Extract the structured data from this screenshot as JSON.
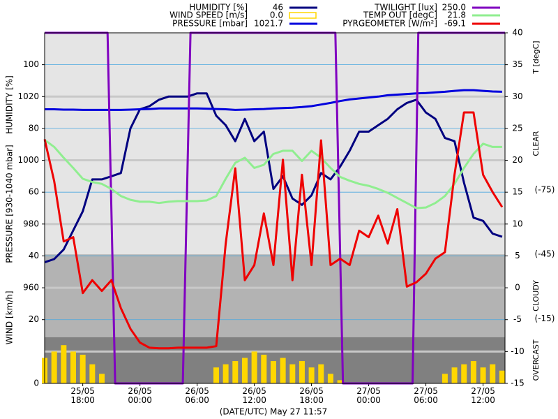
{
  "chart_data": {
    "type": "line",
    "xlabel": "(DATE/UTC) May 27 11:57",
    "x": [
      14,
      15,
      16,
      17,
      18,
      19,
      20,
      21,
      22,
      23,
      24,
      25,
      26,
      27,
      28,
      29,
      30,
      31,
      32,
      33,
      34,
      35,
      36,
      37,
      38,
      39,
      40,
      41,
      42,
      43,
      44,
      45,
      46,
      47,
      48,
      49,
      50,
      51,
      52,
      53,
      54,
      55,
      56,
      57,
      58,
      59,
      60,
      61,
      62
    ],
    "xlim": [
      14,
      62.3
    ],
    "xticks": [
      {
        "value": 18,
        "label": "25/05 18:00"
      },
      {
        "value": 24,
        "label": "26/05 00:00"
      },
      {
        "value": 30,
        "label": "26/05 06:00"
      },
      {
        "value": 36,
        "label": "26/05 12:00"
      },
      {
        "value": 42,
        "label": "26/05 18:00"
      },
      {
        "value": 48,
        "label": "27/05 00:00"
      },
      {
        "value": 54,
        "label": "27/05 06:00"
      },
      {
        "value": 60,
        "label": "27/05 12:00"
      }
    ],
    "axes": {
      "humidity": {
        "label": "HUMIDITY [%]",
        "ylim": [
          0,
          110
        ],
        "yticks": [
          60,
          80,
          100
        ],
        "gridlines": [
          20,
          40,
          60,
          80,
          100
        ]
      },
      "pressure": {
        "label": "PRESSURE [930-1040 mbar]",
        "ylim": [
          930,
          1040
        ],
        "yticks": [
          960,
          980,
          1000,
          1020
        ]
      },
      "wind": {
        "label": "WIND [km/h]",
        "ylim": [
          0,
          110
        ],
        "yticks": [
          0,
          20,
          40
        ]
      },
      "temperature": {
        "label": "T [degC]",
        "ylim": [
          -15,
          40
        ],
        "yticks": [
          -15,
          -10,
          -5,
          0,
          5,
          10,
          15,
          20,
          25,
          30,
          35,
          40
        ],
        "gridlines": [
          -10,
          0,
          10,
          20,
          30
        ]
      },
      "pyrgeometer": {
        "ylim": [
          15,
          -148
        ],
        "yticks": [
          {
            "value": -75,
            "label": "(-75)"
          },
          {
            "value": -45,
            "label": "(-45)"
          },
          {
            "value": -15,
            "label": "(-15)"
          }
        ]
      },
      "twilight": {
        "ylim": [
          0,
          250
        ]
      }
    },
    "bands": [
      {
        "label": "CLEAR",
        "from": -148,
        "to": -45,
        "color": "#e5e5e5"
      },
      {
        "label": "CLOUDY",
        "from": -45,
        "to": -6.5,
        "color": "#b3b3b3"
      },
      {
        "label": "OVERCAST",
        "from": -6.5,
        "to": 15,
        "color": "#808080"
      }
    ],
    "series": [
      {
        "name": "HUMIDITY [%]",
        "legend_value": "46",
        "color": "#000080",
        "axis": "humidity",
        "kind": "line",
        "values": [
          38,
          39,
          42,
          48,
          54,
          64,
          64,
          65,
          66,
          80,
          86,
          87,
          89,
          90,
          90,
          90,
          91,
          91,
          84,
          81,
          76,
          83,
          76,
          79,
          61,
          65,
          58,
          56,
          59,
          66,
          64,
          68,
          73,
          79,
          79,
          81,
          83,
          86,
          88,
          89,
          85,
          83,
          77,
          76,
          63,
          52,
          51,
          47,
          46
        ]
      },
      {
        "name": "WIND SPEED [m/s]",
        "legend_value": "0.0",
        "color": "#ffd700",
        "axis": "wind",
        "kind": "bar",
        "values": [
          8,
          10,
          12,
          10,
          9,
          6,
          3,
          0,
          0,
          0,
          0,
          0,
          0,
          0,
          0,
          0,
          0,
          0,
          5,
          6,
          7,
          8,
          10,
          9,
          7,
          8,
          6,
          7,
          5,
          6,
          3,
          1,
          0,
          0,
          0,
          0,
          0,
          0,
          0,
          0,
          0,
          0,
          3,
          5,
          6,
          7,
          5,
          6,
          4
        ]
      },
      {
        "name": "PRESSURE [mbar]",
        "legend_value": "1021.7",
        "color": "#0000dd",
        "axis": "pressure",
        "kind": "line",
        "values": [
          1016,
          1016,
          1015.9,
          1015.9,
          1015.8,
          1015.8,
          1015.8,
          1015.8,
          1015.8,
          1015.9,
          1016,
          1016.1,
          1016.3,
          1016.3,
          1016.3,
          1016.3,
          1016.3,
          1016.2,
          1016.1,
          1016,
          1015.8,
          1015.9,
          1016,
          1016.1,
          1016.3,
          1016.4,
          1016.5,
          1016.7,
          1017,
          1017.5,
          1018,
          1018.6,
          1019.1,
          1019.4,
          1019.7,
          1020,
          1020.4,
          1020.6,
          1020.8,
          1021,
          1021.1,
          1021.3,
          1021.5,
          1021.8,
          1022,
          1022,
          1021.8,
          1021.6,
          1021.5
        ]
      },
      {
        "name": "TWILIGHT [lux]",
        "legend_value": "250.0",
        "color": "#8000c0",
        "axis": "twilight",
        "kind": "line",
        "x": [
          14,
          20.6,
          21.4,
          28.5,
          29.3,
          44.5,
          45.3,
          52.6,
          53.2,
          62.3
        ],
        "values": [
          250,
          250,
          0,
          0,
          250,
          250,
          0,
          0,
          250,
          250
        ]
      },
      {
        "name": "TEMP OUT [degC]",
        "legend_value": "21.8",
        "color": "#90ee90",
        "axis": "temperature",
        "kind": "line",
        "values": [
          23.2,
          22.1,
          20.4,
          18.8,
          17.1,
          16.6,
          16.3,
          15.5,
          14.4,
          13.8,
          13.5,
          13.5,
          13.3,
          13.5,
          13.6,
          13.6,
          13.6,
          13.7,
          14.4,
          17.1,
          19.6,
          20.4,
          18.8,
          19.3,
          21,
          21.5,
          21.5,
          19.9,
          21.5,
          20.4,
          18.8,
          17.4,
          16.8,
          16.3,
          16,
          15.5,
          14.9,
          14.1,
          13.3,
          12.5,
          12.6,
          13.3,
          14.4,
          16.3,
          18.8,
          21,
          22.6,
          22.1,
          22.1
        ]
      },
      {
        "name": "PYRGEOMETER [W/m²]",
        "legend_value": "-69.1",
        "color": "#ee0000",
        "axis": "pyrgeometer",
        "kind": "line",
        "values": [
          -98.5,
          -79,
          -51,
          -53,
          -27,
          -33,
          -28,
          -33,
          -20,
          -10.4,
          -4,
          -1.6,
          -1.3,
          -1.3,
          -1.6,
          -1.6,
          -1.6,
          -1.6,
          -2.3,
          -50,
          -85,
          -33,
          -40,
          -64,
          -40,
          -89,
          -33,
          -82,
          -40,
          -98,
          -40,
          -43,
          -40,
          -56,
          -53,
          -63,
          -50,
          -66,
          -30,
          -32,
          -36,
          -43,
          -46,
          -82,
          -111,
          -111,
          -82,
          -74,
          -67
        ]
      }
    ]
  }
}
